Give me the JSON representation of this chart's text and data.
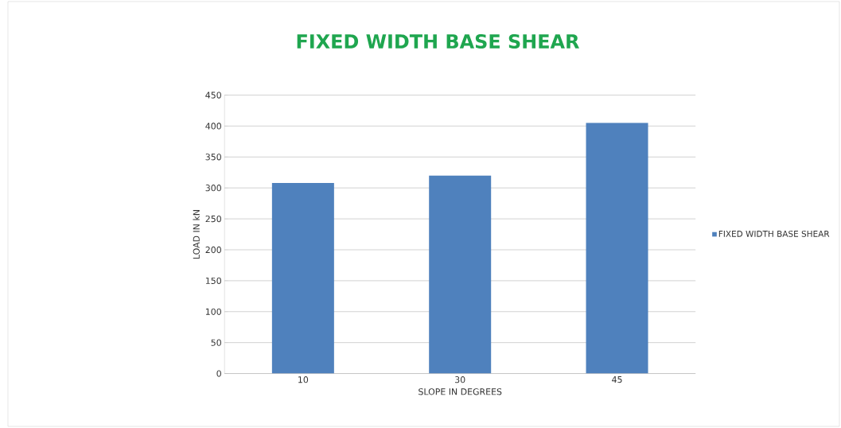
{
  "chart_data": {
    "type": "bar",
    "title": "FIXED WIDTH BASE SHEAR",
    "xlabel": "SLOPE IN DEGREES",
    "ylabel": "LOAD IN kN",
    "categories": [
      "10",
      "30",
      "45"
    ],
    "series": [
      {
        "name": "FIXED WIDTH BASE SHEAR",
        "color": "#4f81bd",
        "values": [
          308,
          320,
          405
        ]
      }
    ],
    "ylim": [
      0,
      450
    ],
    "yticks": [
      0,
      50,
      100,
      150,
      200,
      250,
      300,
      350,
      400,
      450
    ],
    "grid": "y",
    "legend": "right"
  }
}
